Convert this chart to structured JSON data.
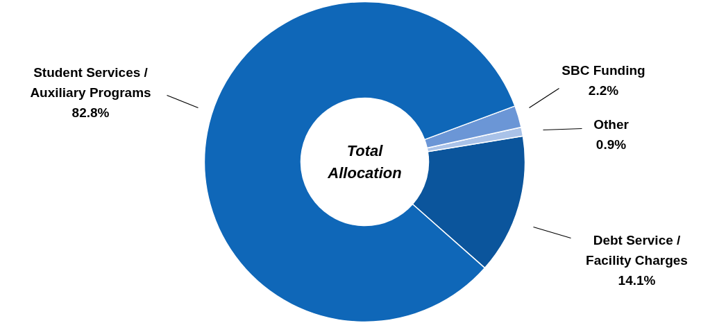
{
  "chart_data": {
    "type": "donut",
    "categories": [
      "Debt Service /\nFacility Charges",
      "Other",
      "SBC Funding",
      "Student Services /\nAuxiliary Programs"
    ],
    "values": [
      14.1,
      0.9,
      2.2,
      82.8
    ],
    "value_labels": [
      "14.1%",
      "0.9%",
      "2.2%",
      "82.8%"
    ],
    "colors": [
      "#0b559c",
      "#a9c2e8",
      "#6b96d6",
      "#0f67b8"
    ],
    "annotations": [
      "Total\nAllocation"
    ]
  }
}
